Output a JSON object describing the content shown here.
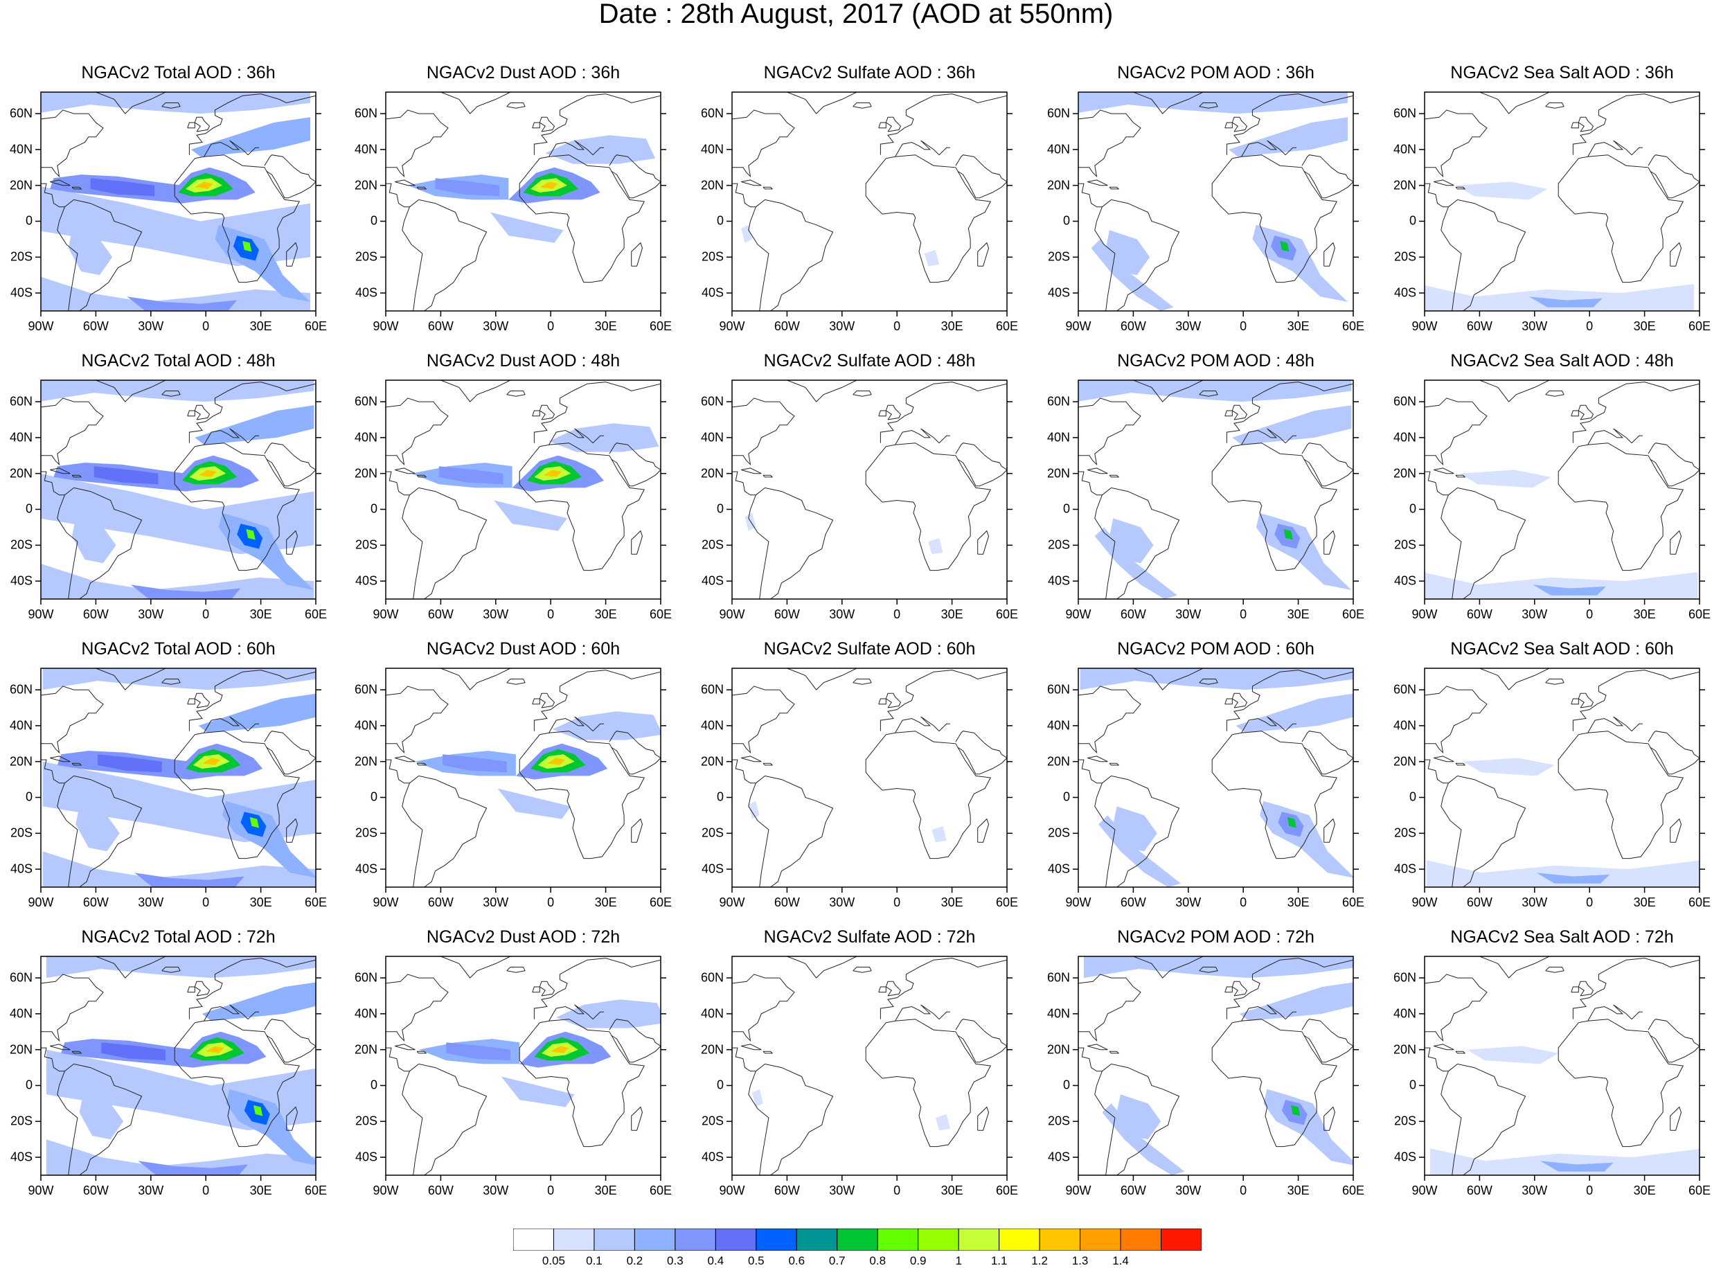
{
  "title": "Date : 28th August, 2017 (AOD at 550nm)",
  "panels": [
    [
      "NGACv2 Total AOD : 36h",
      "NGACv2 Dust AOD : 36h",
      "NGACv2 Sulfate AOD : 36h",
      "NGACv2 POM AOD : 36h",
      "NGACv2 Sea Salt AOD : 36h"
    ],
    [
      "NGACv2 Total AOD : 48h",
      "NGACv2 Dust AOD : 48h",
      "NGACv2 Sulfate AOD : 48h",
      "NGACv2 POM AOD : 48h",
      "NGACv2 Sea Salt AOD : 48h"
    ],
    [
      "NGACv2 Total AOD : 60h",
      "NGACv2 Dust AOD : 60h",
      "NGACv2 Sulfate AOD : 60h",
      "NGACv2 POM AOD : 60h",
      "NGACv2 Sea Salt AOD : 60h"
    ],
    [
      "NGACv2 Total AOD : 72h",
      "NGACv2 Dust AOD : 72h",
      "NGACv2 Sulfate AOD : 72h",
      "NGACv2 POM AOD : 72h",
      "NGACv2 Sea Salt  AOD : 72h"
    ]
  ],
  "lat_ticks": [
    "60N",
    "40N",
    "20N",
    "0",
    "20S",
    "40S"
  ],
  "lon_ticks": [
    "90W",
    "60W",
    "30W",
    "0",
    "30E",
    "60E"
  ],
  "colorbar": {
    "labels": [
      "0.05",
      "0.1",
      "0.2",
      "0.3",
      "0.4",
      "0.5",
      "0.6",
      "0.7",
      "0.8",
      "0.9",
      "1",
      "1.1",
      "1.2",
      "1.3",
      "1.4"
    ],
    "colors": [
      "#ffffff",
      "#d6e2ff",
      "#b5c9ff",
      "#8eb2ff",
      "#7f96ff",
      "#6370f8",
      "#0063ff",
      "#009696",
      "#00c633",
      "#63ff00",
      "#96ff00",
      "#c6ff33",
      "#ffff00",
      "#ffc600",
      "#ffa000",
      "#ff7c00",
      "#ff1900"
    ]
  }
}
